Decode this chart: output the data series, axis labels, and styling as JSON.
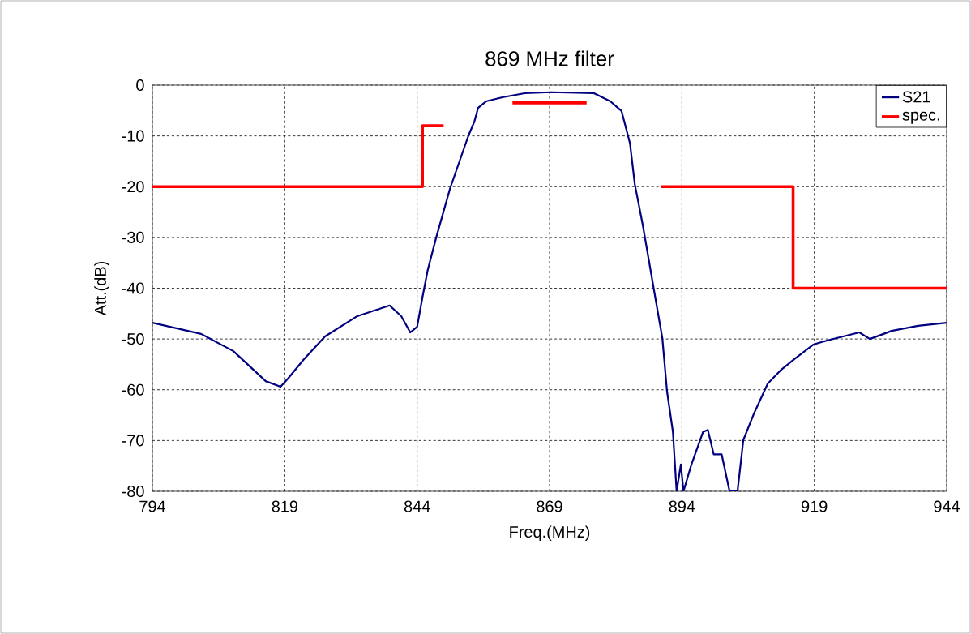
{
  "chart_data": {
    "type": "line",
    "title": "869 MHz filter",
    "xlabel": "Freq.(MHz)",
    "ylabel": "Att.(dB)",
    "xlim": [
      794,
      944
    ],
    "ylim": [
      -80,
      0
    ],
    "xticks": [
      794,
      819,
      844,
      869,
      894,
      919,
      944
    ],
    "yticks": [
      -80,
      -70,
      -60,
      -50,
      -40,
      -30,
      -20,
      -10,
      0
    ],
    "grid": true,
    "legend": "top right",
    "marker": "none",
    "line_style": "solid",
    "series": [
      {
        "name": "S21",
        "color": "#000080",
        "x": [
          794,
          803.2,
          809.3,
          815.4,
          818.2,
          819.6,
          822.6,
          826.6,
          832.7,
          838.8,
          841,
          842.7,
          844,
          845,
          846,
          847.6,
          850.2,
          853.7,
          854.8,
          855.5,
          857,
          860.1,
          864.3,
          869.3,
          877.4,
          880.5,
          882.6,
          884.2,
          885.1,
          886.6,
          888.7,
          890.3,
          891.2,
          892.3,
          893,
          893.8,
          894.3,
          895.8,
          898,
          898.9,
          900,
          901.5,
          903,
          904.5,
          905.6,
          907.6,
          910.2,
          912.6,
          915.2,
          918.8,
          921.4,
          927.5,
          929.5,
          933.6,
          938.6,
          944
        ],
        "values": [
          -46.8,
          -49,
          -52.4,
          -58.3,
          -59.4,
          -57.8,
          -54,
          -49.5,
          -45.5,
          -43.4,
          -45.5,
          -48.7,
          -47.6,
          -41.8,
          -36.4,
          -30,
          -20.4,
          -9.9,
          -7.2,
          -4.5,
          -3.2,
          -2.4,
          -1.6,
          -1.4,
          -1.6,
          -3.2,
          -5.1,
          -11.5,
          -19.5,
          -27.5,
          -40.2,
          -49.8,
          -60.4,
          -68.3,
          -80,
          -74.7,
          -80,
          -74.7,
          -68.3,
          -67.9,
          -72.7,
          -72.7,
          -80,
          -80,
          -69.9,
          -64.7,
          -58.8,
          -56.2,
          -54,
          -51.1,
          -50.3,
          -48.7,
          -50,
          -48.4,
          -47.4,
          -46.8
        ]
      },
      {
        "name": "spec.",
        "color": "#ff0000",
        "x": [
          794,
          845,
          845,
          849,
          null,
          862,
          876,
          null,
          890,
          915,
          915,
          944
        ],
        "values": [
          -20,
          -20,
          -8,
          -8,
          null,
          -3.5,
          -3.5,
          null,
          -20,
          -20,
          -40,
          -40
        ]
      }
    ]
  }
}
